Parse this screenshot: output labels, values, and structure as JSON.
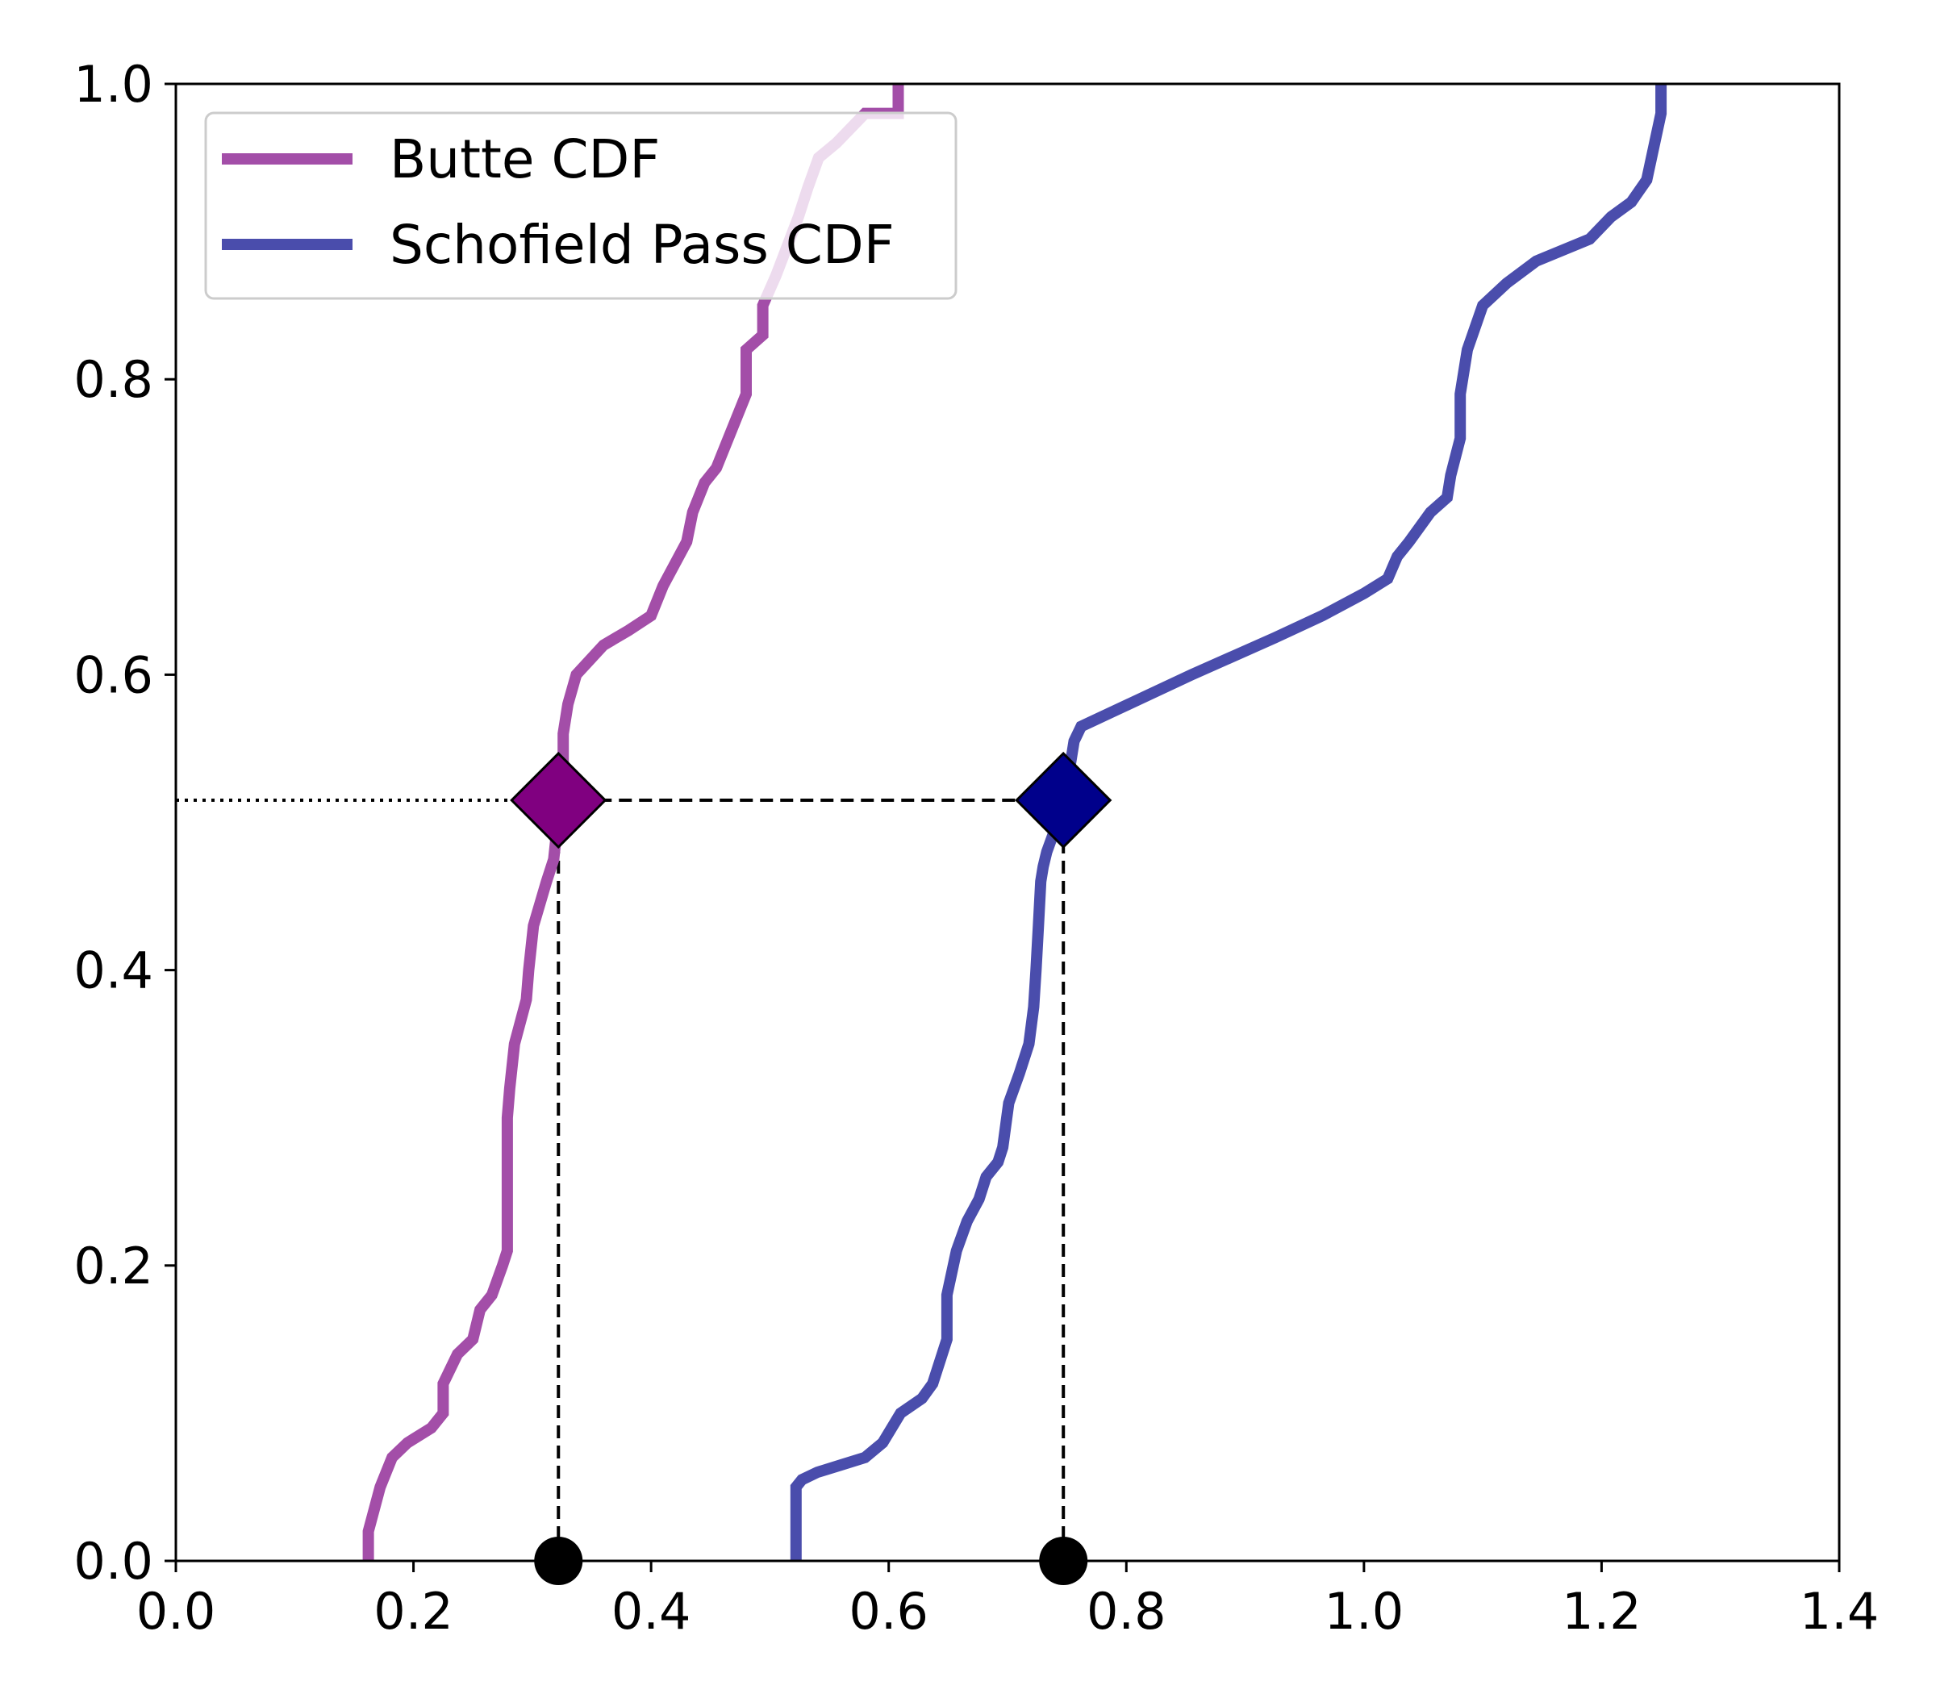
{
  "chart_data": {
    "type": "line",
    "title": "",
    "xlabel": "",
    "ylabel": "",
    "xlim": [
      0.0,
      1.4
    ],
    "ylim": [
      0.0,
      1.0
    ],
    "xticks": [
      "0.0",
      "0.2",
      "0.4",
      "0.6",
      "0.8",
      "1.0",
      "1.2",
      "1.4"
    ],
    "yticks": [
      "0.0",
      "0.2",
      "0.4",
      "0.6",
      "0.8",
      "1.0"
    ],
    "grid": false,
    "legend_position": "top-left",
    "series": [
      {
        "name": "Butte CDF",
        "color": "#a34ea8",
        "x": [
          0.162,
          0.162,
          0.172,
          0.182,
          0.195,
          0.215,
          0.225,
          0.225,
          0.237,
          0.25,
          0.256,
          0.266,
          0.275,
          0.279,
          0.279,
          0.279,
          0.281,
          0.285,
          0.295,
          0.297,
          0.301,
          0.312,
          0.318,
          0.32,
          0.323,
          0.326,
          0.326,
          0.33,
          0.337,
          0.36,
          0.381,
          0.4,
          0.41,
          0.43,
          0.435,
          0.445,
          0.455,
          0.465,
          0.48,
          0.48,
          0.494,
          0.494,
          0.505,
          0.524,
          0.532,
          0.541,
          0.556,
          0.58,
          0.608,
          0.608
        ],
        "y": [
          0.0,
          0.02,
          0.05,
          0.07,
          0.08,
          0.09,
          0.1,
          0.12,
          0.14,
          0.15,
          0.17,
          0.18,
          0.2,
          0.21,
          0.25,
          0.3,
          0.32,
          0.35,
          0.38,
          0.4,
          0.43,
          0.46,
          0.475,
          0.49,
          0.515,
          0.54,
          0.56,
          0.58,
          0.6,
          0.62,
          0.63,
          0.64,
          0.66,
          0.69,
          0.71,
          0.73,
          0.74,
          0.76,
          0.79,
          0.82,
          0.83,
          0.85,
          0.87,
          0.91,
          0.93,
          0.95,
          0.96,
          0.98,
          0.98,
          1.0
        ],
        "marker": {
          "x": 0.322,
          "y": 0.515,
          "color": "#800080"
        }
      },
      {
        "name": "Schofield Pass CDF",
        "color": "#4a4dac",
        "x": [
          0.522,
          0.522,
          0.527,
          0.54,
          0.56,
          0.58,
          0.595,
          0.61,
          0.628,
          0.637,
          0.645,
          0.649,
          0.649,
          0.657,
          0.666,
          0.676,
          0.682,
          0.692,
          0.696,
          0.701,
          0.71,
          0.718,
          0.722,
          0.724,
          0.726,
          0.728,
          0.73,
          0.733,
          0.742,
          0.751,
          0.756,
          0.762,
          0.855,
          0.925,
          0.965,
          1.0,
          1.02,
          1.028,
          1.038,
          1.056,
          1.07,
          1.073,
          1.081,
          1.081,
          1.087,
          1.1,
          1.12,
          1.145,
          1.19,
          1.208,
          1.225,
          1.238,
          1.25,
          1.25
        ],
        "y": [
          0.0,
          0.05,
          0.055,
          0.06,
          0.065,
          0.07,
          0.08,
          0.1,
          0.11,
          0.12,
          0.14,
          0.15,
          0.18,
          0.21,
          0.23,
          0.245,
          0.26,
          0.27,
          0.28,
          0.31,
          0.33,
          0.35,
          0.375,
          0.4,
          0.43,
          0.46,
          0.47,
          0.48,
          0.5,
          0.53,
          0.555,
          0.565,
          0.6,
          0.625,
          0.64,
          0.655,
          0.665,
          0.68,
          0.69,
          0.71,
          0.72,
          0.735,
          0.76,
          0.79,
          0.82,
          0.85,
          0.865,
          0.88,
          0.895,
          0.91,
          0.92,
          0.935,
          0.98,
          1.0
        ],
        "marker": {
          "x": 0.747,
          "y": 0.515,
          "color": "#00008b"
        }
      }
    ],
    "reference_lines": {
      "y_level": 0.515,
      "x_points": [
        0.322,
        0.747
      ]
    }
  }
}
